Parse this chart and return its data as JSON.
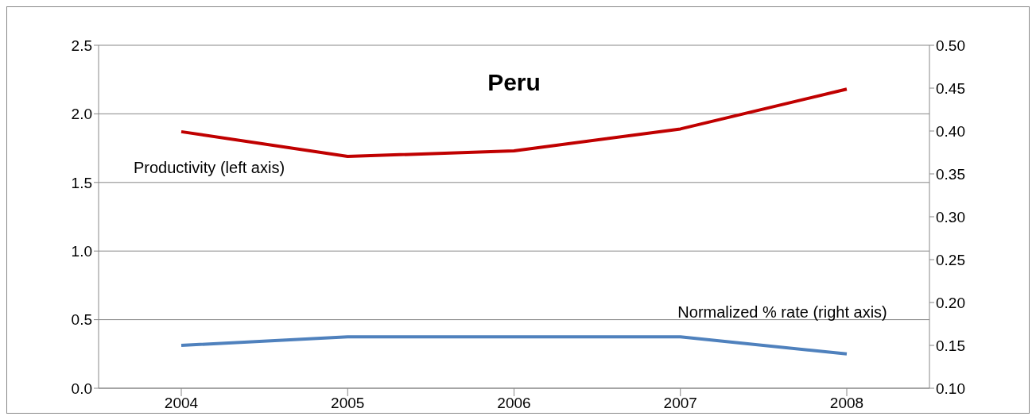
{
  "chart_data": {
    "type": "line",
    "title": "Peru",
    "categories": [
      "2004",
      "2005",
      "2006",
      "2007",
      "2008"
    ],
    "series": [
      {
        "name": "Productivity (left axis)",
        "color": "#c00000",
        "values": [
          1.87,
          1.69,
          1.73,
          1.89,
          2.18
        ]
      },
      {
        "name": "Normalized % rate (right axis)",
        "color": "#4f81bd",
        "axis": "y2",
        "values": [
          0.15,
          0.16,
          0.16,
          0.16,
          0.14
        ]
      }
    ],
    "ylim": [
      0,
      2.5
    ],
    "yticks": [
      {
        "value": 0,
        "label": "0.0"
      },
      {
        "value": 0.5,
        "label": "0.5"
      },
      {
        "value": 1,
        "label": "1.0"
      },
      {
        "value": 1.5,
        "label": "1.5"
      },
      {
        "value": 2,
        "label": "2.0"
      },
      {
        "value": 2.5,
        "label": "2.5"
      }
    ],
    "y2lim": [
      0.1,
      0.5
    ],
    "y2ticks": [
      {
        "value": 0.1,
        "label": "0.10"
      },
      {
        "value": 0.15,
        "label": "0.15"
      },
      {
        "value": 0.2,
        "label": "0.20"
      },
      {
        "value": 0.25,
        "label": "0.25"
      },
      {
        "value": 0.3,
        "label": "0.30"
      },
      {
        "value": 0.35,
        "label": "0.35"
      },
      {
        "value": 0.4,
        "label": "0.40"
      },
      {
        "value": 0.45,
        "label": "0.45"
      },
      {
        "value": 0.5,
        "label": "0.50"
      }
    ],
    "grid": "y",
    "legend": false,
    "marker": "none",
    "line_style": "solid"
  }
}
